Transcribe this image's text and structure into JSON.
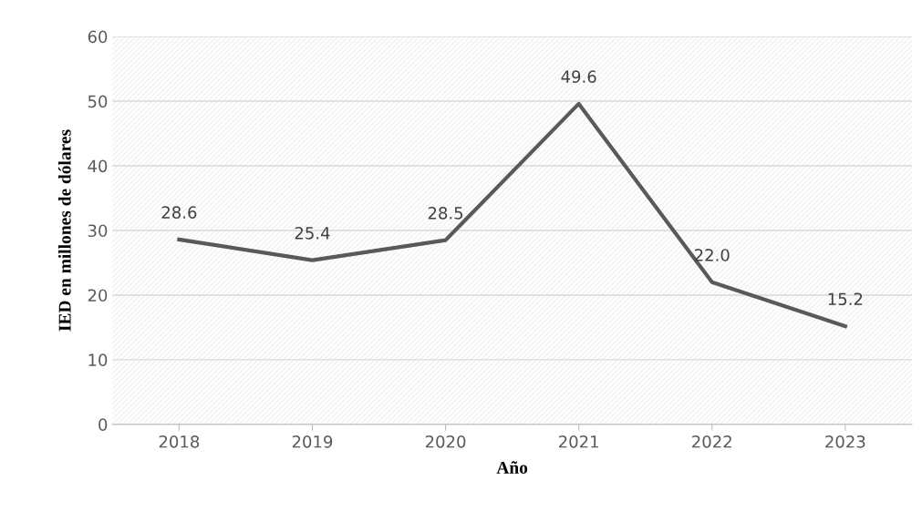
{
  "chart_data": {
    "type": "line",
    "xlabel": "Año",
    "ylabel": "IED en millones de dólares",
    "categories": [
      "2018",
      "2019",
      "2020",
      "2021",
      "2022",
      "2023"
    ],
    "series": [
      {
        "color": "#595959",
        "values": [
          28.6,
          25.4,
          28.5,
          49.6,
          22.0,
          15.2
        ],
        "value_labels": [
          "28.6",
          "25.4",
          "28.5",
          "49.6",
          "22.0",
          "15.2"
        ]
      }
    ],
    "ylim": [
      0,
      60
    ],
    "yticks": [
      0,
      10,
      20,
      30,
      40,
      50,
      60
    ],
    "grid": "y",
    "marker": "none",
    "line_style": "solid",
    "legend": false
  }
}
